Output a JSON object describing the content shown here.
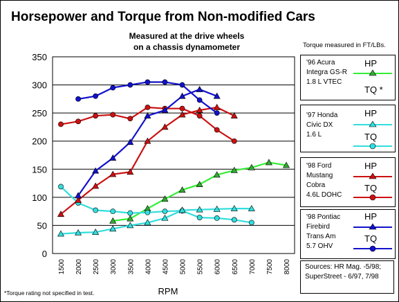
{
  "colors": {
    "acura": "#33ee33",
    "honda": "#33dddd",
    "ford": "#cc1111",
    "pontiac": "#1111cc",
    "grid": "#000000"
  },
  "chart_data": {
    "type": "line",
    "title": "Horsepower and Torque from Non-modified Cars",
    "subtitle_lines": [
      "Measured at the drive wheels",
      "on a chassis dynamometer"
    ],
    "xlabel": "RPM",
    "ylabel": "",
    "x_ticks": [
      "1500",
      "2000",
      "2500",
      "3000",
      "3500",
      "4000",
      "4500",
      "5000",
      "5500",
      "6000",
      "6500",
      "7000",
      "7500",
      "8000"
    ],
    "y_ticks": [
      "0",
      "50",
      "100",
      "150",
      "200",
      "250",
      "300",
      "350"
    ],
    "ylim": [
      0,
      350
    ],
    "grid": "horizontal",
    "legend_position": "right",
    "torque_note": "Torque measured in FT/LBs.",
    "series": [
      {
        "id": "acura_hp",
        "car": "acura",
        "metric": "HP",
        "marker": "triangle",
        "x": [
          3000,
          3500,
          4000,
          4500,
          5000,
          5500,
          6000,
          6500,
          7000,
          7500,
          8000
        ],
        "y": [
          58,
          62,
          80,
          97,
          113,
          123,
          140,
          148,
          153,
          162,
          157
        ]
      },
      {
        "id": "honda_hp",
        "car": "honda",
        "metric": "HP",
        "marker": "triangle",
        "x": [
          1500,
          2000,
          2500,
          3000,
          3500,
          4000,
          4500,
          5000
        ],
        "y": [
          35,
          37,
          38,
          44,
          50,
          55,
          63,
          77
        ]
      },
      {
        "id": "honda_tq",
        "car": "honda",
        "metric": "TQ",
        "marker": "circle",
        "x": [
          1500,
          2000,
          2500,
          3000,
          3500,
          4000,
          4500,
          5000,
          5500,
          6000,
          6500,
          7000
        ],
        "y": [
          119,
          90,
          77,
          75,
          72,
          73,
          75,
          76,
          64,
          63,
          60,
          55
        ]
      },
      {
        "id": "ford_hp",
        "car": "ford",
        "metric": "HP",
        "marker": "triangle",
        "x": [
          1500,
          2000,
          2500,
          3000,
          3500,
          4000,
          4500,
          5000,
          5500,
          6000,
          6500
        ],
        "y": [
          70,
          95,
          120,
          141,
          145,
          200,
          225,
          247,
          255,
          260,
          245
        ]
      },
      {
        "id": "ford_tq",
        "car": "ford",
        "metric": "TQ",
        "marker": "circle",
        "x": [
          1500,
          2000,
          2500,
          3000,
          3500,
          4000,
          4500,
          5000,
          5500,
          6000,
          6500
        ],
        "y": [
          230,
          235,
          245,
          247,
          240,
          260,
          258,
          258,
          245,
          220,
          200
        ]
      },
      {
        "id": "pontiac_hp",
        "car": "pontiac",
        "metric": "HP",
        "marker": "triangle",
        "x": [
          2000,
          2500,
          3000,
          3500,
          4000,
          4500,
          5000,
          5500,
          6000
        ],
        "y": [
          103,
          147,
          170,
          198,
          245,
          255,
          280,
          292,
          280
        ]
      },
      {
        "id": "pontiac_tq",
        "car": "pontiac",
        "metric": "TQ",
        "marker": "circle",
        "x": [
          2000,
          2500,
          3000,
          3500,
          4000,
          4500,
          5000,
          5500,
          6000
        ],
        "y": [
          275,
          280,
          295,
          300,
          305,
          305,
          300,
          273,
          250
        ]
      },
      {
        "id": "honda_flat",
        "car": "honda",
        "metric": "HP",
        "marker": "triangle",
        "x": [
          5000,
          5500,
          6000,
          6500,
          7000
        ],
        "y": [
          77,
          78,
          79,
          80,
          80
        ]
      }
    ]
  },
  "legend": [
    {
      "id": "acura",
      "lines": [
        "'96 Acura",
        "Integra GS-R",
        "1.8 L VTEC"
      ],
      "hp_label": "HP",
      "tq_label": "TQ *"
    },
    {
      "id": "honda",
      "lines": [
        "'97 Honda",
        "Civic DX",
        "1.6 L"
      ],
      "hp_label": "HP",
      "tq_label": "TQ"
    },
    {
      "id": "ford",
      "lines": [
        "'98 Ford",
        "Mustang",
        "Cobra",
        "4.6L DOHC"
      ],
      "hp_label": "HP",
      "tq_label": "TQ"
    },
    {
      "id": "pontiac",
      "lines": [
        "'98 Pontiac",
        "Firebird",
        "Trans Am",
        "5.7 OHV"
      ],
      "hp_label": "HP",
      "tq_label": "TQ"
    }
  ],
  "sources": [
    "Sources: HR Mag. -5/98;",
    "SuperStreet - 6/97, 7/98"
  ],
  "footnote": "*Torque rating not specified in test."
}
